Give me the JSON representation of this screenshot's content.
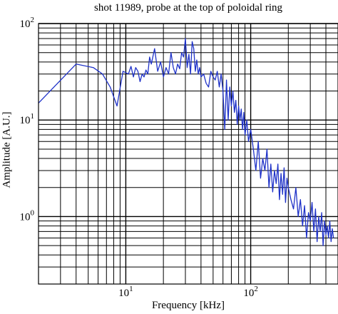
{
  "chart_data": {
    "type": "line",
    "title": "shot 11989, probe at the top of poloidal ring",
    "xlabel": "Frequency [kHz]",
    "ylabel": "Amplitude [A.U.]",
    "x_scale": "log",
    "y_scale": "log",
    "xlim": [
      2,
      500
    ],
    "ylim": [
      0.2,
      100
    ],
    "grid": true,
    "line_color": "#1f32c8",
    "x_ticks": [
      {
        "value": 10,
        "base": "10",
        "exp": "1"
      },
      {
        "value": 100,
        "base": "10",
        "exp": "2"
      }
    ],
    "y_ticks": [
      {
        "value": 1,
        "base": "10",
        "exp": "0"
      },
      {
        "value": 10,
        "base": "10",
        "exp": "1"
      },
      {
        "value": 100,
        "base": "10",
        "exp": "2"
      }
    ],
    "series": [
      {
        "x": [
          2,
          4,
          5.5,
          6.5,
          7.5,
          8.5,
          9.5,
          10.5,
          11,
          11.5,
          12,
          12.5,
          13,
          13.5,
          14,
          14.5,
          15,
          15.5,
          16,
          17,
          18,
          19,
          20,
          21,
          22,
          23,
          24,
          25,
          26,
          27,
          28,
          29,
          30,
          31,
          32,
          33,
          34,
          35,
          36,
          37,
          38,
          39,
          40,
          42,
          44,
          46,
          48,
          50,
          52,
          54,
          56,
          58,
          60,
          62,
          63,
          64,
          66,
          68,
          70,
          72,
          74,
          76,
          78,
          80,
          82,
          84,
          86,
          88,
          90,
          93,
          96,
          100,
          105,
          110,
          115,
          120,
          125,
          130,
          135,
          140,
          145,
          150,
          155,
          160,
          165,
          170,
          175,
          180,
          185,
          190,
          195,
          200,
          210,
          220,
          230,
          240,
          250,
          260,
          270,
          280,
          290,
          300,
          310,
          320,
          330,
          340,
          350,
          360,
          370,
          380,
          390,
          400,
          410,
          420,
          430,
          440,
          450,
          460
        ],
        "y": [
          15,
          38,
          35,
          30,
          22,
          14,
          32,
          30,
          36,
          28,
          35,
          32,
          25,
          30,
          28,
          33,
          30,
          45,
          38,
          55,
          32,
          40,
          28,
          35,
          30,
          50,
          35,
          30,
          38,
          34,
          50,
          45,
          70,
          35,
          48,
          30,
          65,
          55,
          32,
          42,
          30,
          35,
          28,
          30,
          24,
          22,
          32,
          28,
          26,
          32,
          22,
          30,
          20,
          8,
          14,
          26,
          10,
          22,
          14,
          20,
          12,
          16,
          9,
          14,
          10,
          13,
          8,
          12,
          7,
          10,
          6,
          8,
          5,
          3,
          6,
          2.5,
          4,
          3,
          5,
          2,
          3.5,
          1.8,
          3,
          2.2,
          3.5,
          1.5,
          2.8,
          1.7,
          3.2,
          1.4,
          2.5,
          2,
          1.5,
          1.2,
          2,
          1,
          1.5,
          0.8,
          1.3,
          0.6,
          1.1,
          0.9,
          1.4,
          0.7,
          1.2,
          0.55,
          1.0,
          0.7,
          1.1,
          0.5,
          0.9,
          0.65,
          0.8,
          0.6,
          0.9,
          0.55,
          0.75,
          0.6
        ]
      }
    ]
  }
}
